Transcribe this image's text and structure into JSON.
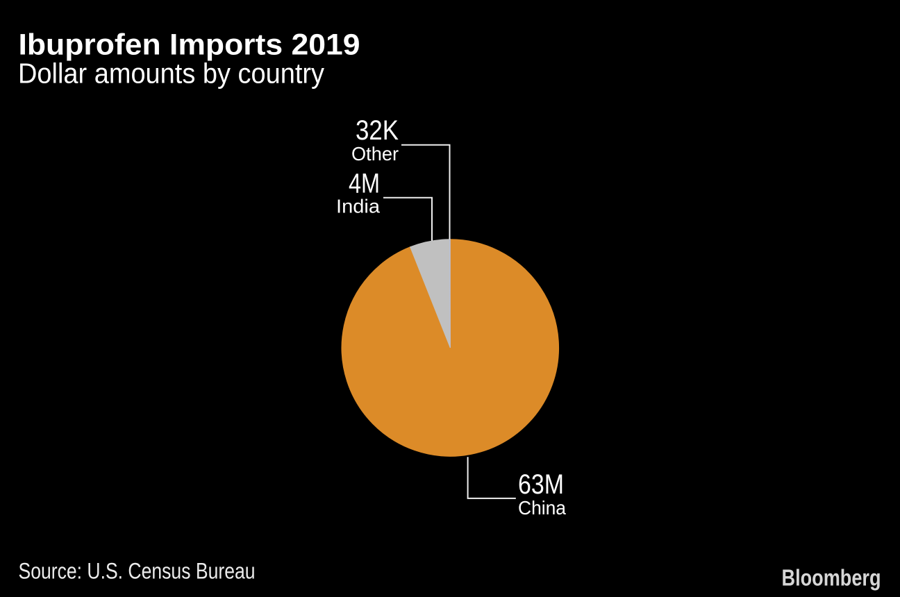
{
  "page": {
    "title": "Ibuprofen Imports 2019",
    "subtitle": "Dollar amounts by country",
    "source": "Source: U.S. Census Bureau",
    "brand": "Bloomberg"
  },
  "colors": {
    "background": "#000000",
    "title_text": "#FFFFFF",
    "subtitle_text": "#FFFFFF",
    "callout_text": "#FFFFFF",
    "source_text": "#EBEBEB",
    "brand_text": "#D6D6D6",
    "leader_line": "#F0F0F0"
  },
  "chart_data": {
    "type": "pie",
    "title": "Ibuprofen Imports 2019",
    "subtitle": "Dollar amounts by country",
    "source": "Source: U.S. Census Bureau",
    "categories": [
      "China",
      "India",
      "Other"
    ],
    "values": [
      63000000,
      4000000,
      32000
    ],
    "value_labels": [
      "63M",
      "4M",
      "32K"
    ],
    "slice_colors": [
      "#DC8B28",
      "#C0C0C0",
      "#B9C2DF"
    ],
    "start_angle_deg": 0,
    "clockwise": true,
    "legend": "none",
    "label_style": "callout-leader-lines"
  }
}
